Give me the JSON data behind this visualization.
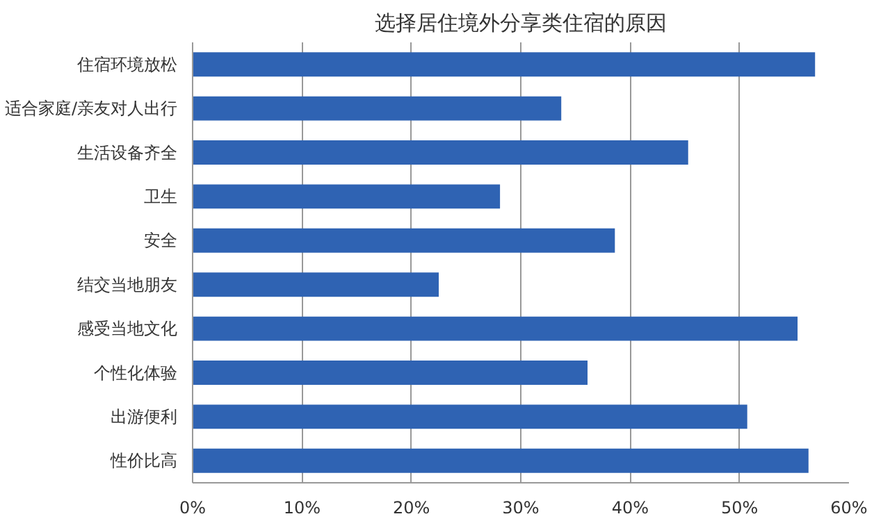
{
  "chart_data": {
    "type": "bar",
    "orientation": "horizontal",
    "title": "选择居住境外分享类住宿的原因",
    "categories": [
      "住宿环境放松",
      "适合家庭/亲友对人出行",
      "生活设备齐全",
      "卫生",
      "安全",
      "结交当地朋友",
      "感受当地文化",
      "个性化体验",
      "出游便利",
      "性价比高"
    ],
    "values": [
      56.9,
      33.7,
      45.3,
      28.1,
      38.6,
      22.5,
      55.3,
      36.1,
      50.7,
      56.3
    ],
    "color": "#2f63b3",
    "xlim": [
      0,
      60
    ],
    "xticks": [
      {
        "value": 0,
        "label": "0%"
      },
      {
        "value": 10,
        "label": "10%"
      },
      {
        "value": 20,
        "label": "20%"
      },
      {
        "value": 30,
        "label": "30%"
      },
      {
        "value": 40,
        "label": "40%"
      },
      {
        "value": 50,
        "label": "50%"
      },
      {
        "value": 60,
        "label": "60%"
      }
    ],
    "grid": "x"
  }
}
